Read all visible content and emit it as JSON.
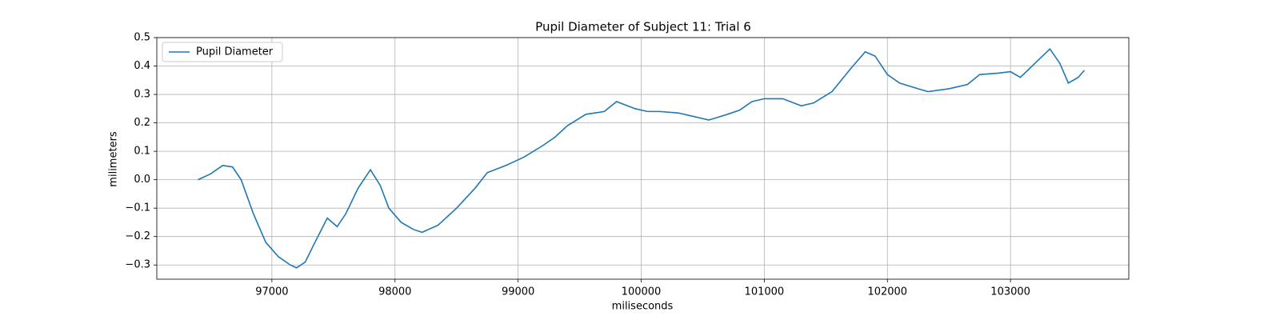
{
  "chart_data": {
    "type": "line",
    "title": "Pupil Diameter of Subject 11: Trial 6",
    "x_label": "miliseconds",
    "y_label": "milimeters",
    "x": [
      96400,
      96500,
      96600,
      96680,
      96750,
      96850,
      96950,
      97050,
      97150,
      97200,
      97270,
      97350,
      97450,
      97530,
      97600,
      97700,
      97800,
      97880,
      97950,
      98050,
      98150,
      98220,
      98350,
      98500,
      98650,
      98750,
      98900,
      99050,
      99200,
      99300,
      99400,
      99550,
      99700,
      99800,
      99950,
      100050,
      100150,
      100300,
      100400,
      100550,
      100700,
      100800,
      100900,
      101000,
      101150,
      101300,
      101400,
      101550,
      101700,
      101820,
      101900,
      102000,
      102100,
      102250,
      102330,
      102500,
      102650,
      102750,
      102900,
      103000,
      103080,
      103200,
      103320,
      103400,
      103470,
      103550,
      103600
    ],
    "series": [
      {
        "name": "Pupil Diameter",
        "color": "#1f77b4",
        "values": [
          0.0,
          0.02,
          0.05,
          0.045,
          0.0,
          -0.12,
          -0.22,
          -0.27,
          -0.3,
          -0.31,
          -0.29,
          -0.22,
          -0.135,
          -0.165,
          -0.12,
          -0.03,
          0.035,
          -0.02,
          -0.1,
          -0.15,
          -0.175,
          -0.185,
          -0.16,
          -0.1,
          -0.03,
          0.025,
          0.05,
          0.08,
          0.12,
          0.15,
          0.19,
          0.23,
          0.24,
          0.275,
          0.25,
          0.24,
          0.24,
          0.235,
          0.225,
          0.21,
          0.23,
          0.245,
          0.275,
          0.285,
          0.285,
          0.26,
          0.27,
          0.31,
          0.39,
          0.45,
          0.435,
          0.37,
          0.34,
          0.32,
          0.31,
          0.32,
          0.335,
          0.37,
          0.375,
          0.38,
          0.36,
          0.41,
          0.46,
          0.41,
          0.34,
          0.36,
          0.385
        ]
      }
    ],
    "xlim": [
      96065,
      103961
    ],
    "ylim": [
      -0.35,
      0.5
    ],
    "xticks": [
      97000,
      98000,
      99000,
      100000,
      101000,
      102000,
      103000
    ],
    "yticks": [
      {
        "value": -0.3,
        "label": "−0.3"
      },
      {
        "value": -0.2,
        "label": "−0.2"
      },
      {
        "value": -0.1,
        "label": "−0.1"
      },
      {
        "value": 0,
        "label": "0.0"
      },
      0.1,
      0.2,
      0.3,
      0.4,
      0.5
    ],
    "grid": true,
    "legend": "upper-left"
  }
}
